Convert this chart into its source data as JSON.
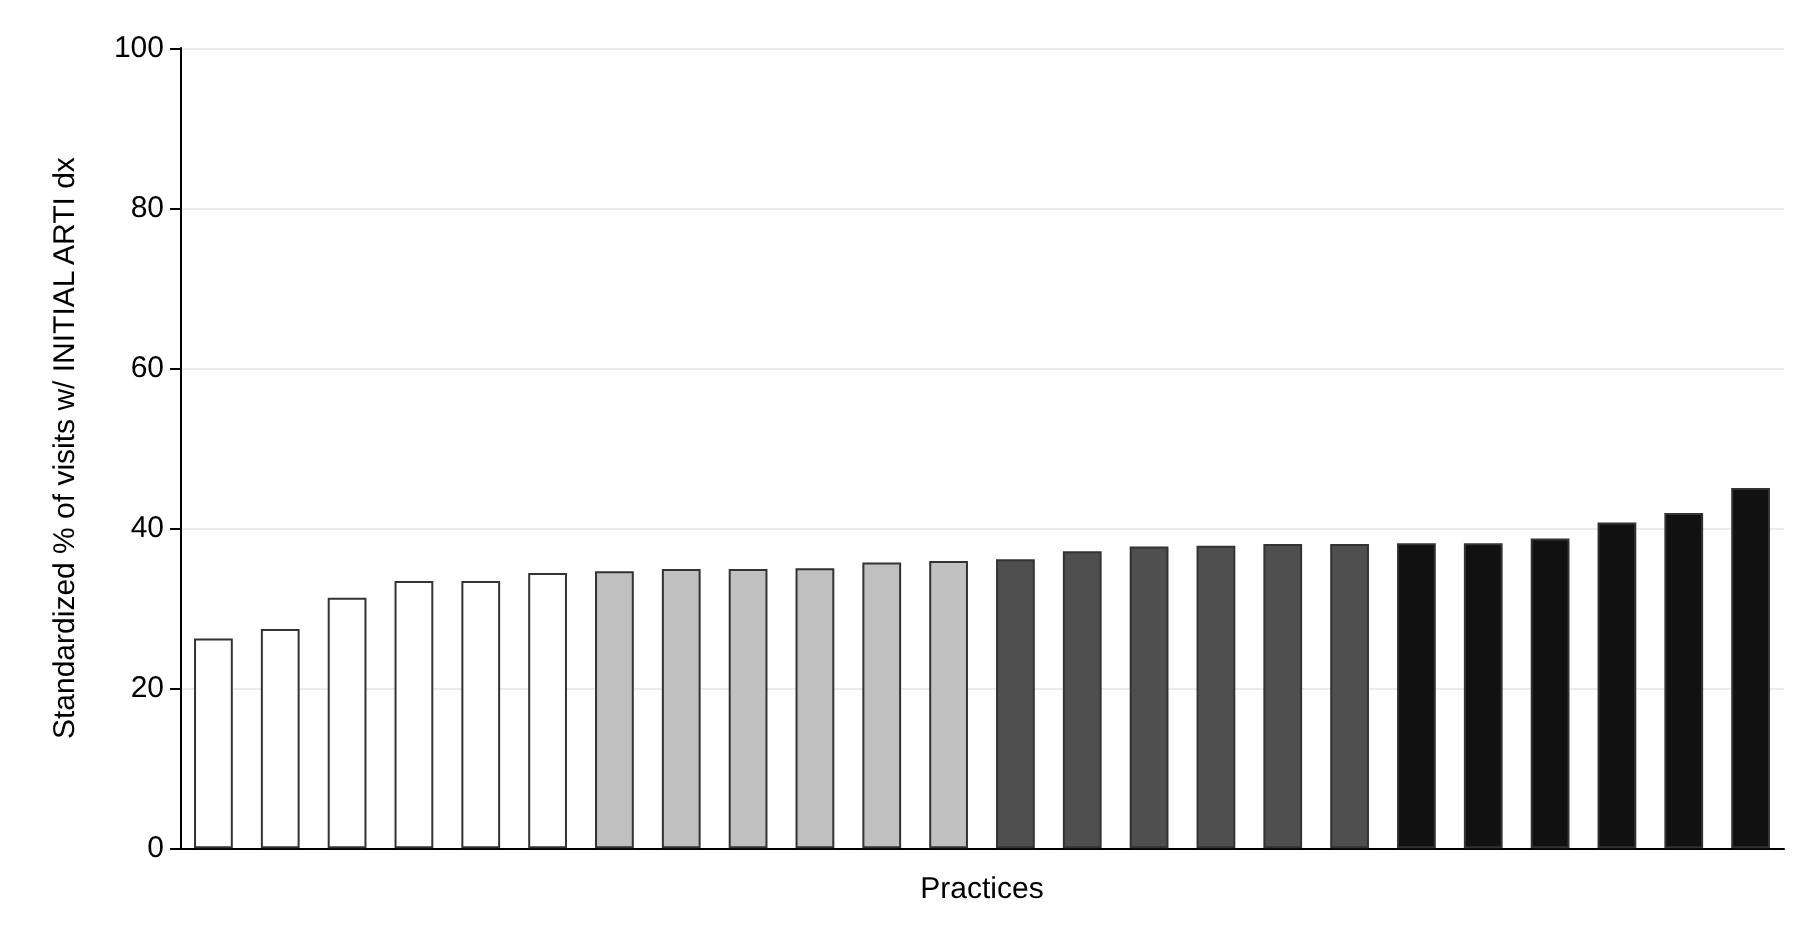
{
  "chart_data": {
    "type": "bar",
    "xlabel": "Practices",
    "ylabel": "Standardized % of visits w/ INITIAL ARTI dx",
    "categories": [
      null,
      null,
      null,
      null,
      null,
      null,
      null,
      null,
      null,
      null,
      null,
      null,
      null,
      null,
      null,
      null,
      null,
      null,
      null,
      null,
      null,
      null,
      null,
      null
    ],
    "values": [
      26.2,
      27.4,
      31.3,
      33.4,
      33.4,
      34.4,
      34.6,
      34.9,
      34.9,
      35.0,
      35.7,
      35.9,
      36.1,
      37.1,
      37.7,
      37.8,
      38.0,
      38.0,
      38.1,
      38.1,
      38.7,
      40.7,
      41.9,
      45.0
    ],
    "colors": [
      "#ffffff",
      "#ffffff",
      "#ffffff",
      "#ffffff",
      "#ffffff",
      "#ffffff",
      "#c0c0c0",
      "#c0c0c0",
      "#c0c0c0",
      "#c0c0c0",
      "#c0c0c0",
      "#c0c0c0",
      "#4f4f4f",
      "#4f4f4f",
      "#4f4f4f",
      "#4f4f4f",
      "#4f4f4f",
      "#4f4f4f",
      "#111111",
      "#111111",
      "#111111",
      "#111111",
      "#111111",
      "#111111"
    ],
    "ylim": [
      0,
      100
    ],
    "yticks": [
      0,
      20,
      40,
      60,
      80,
      100
    ],
    "grid": "y"
  }
}
